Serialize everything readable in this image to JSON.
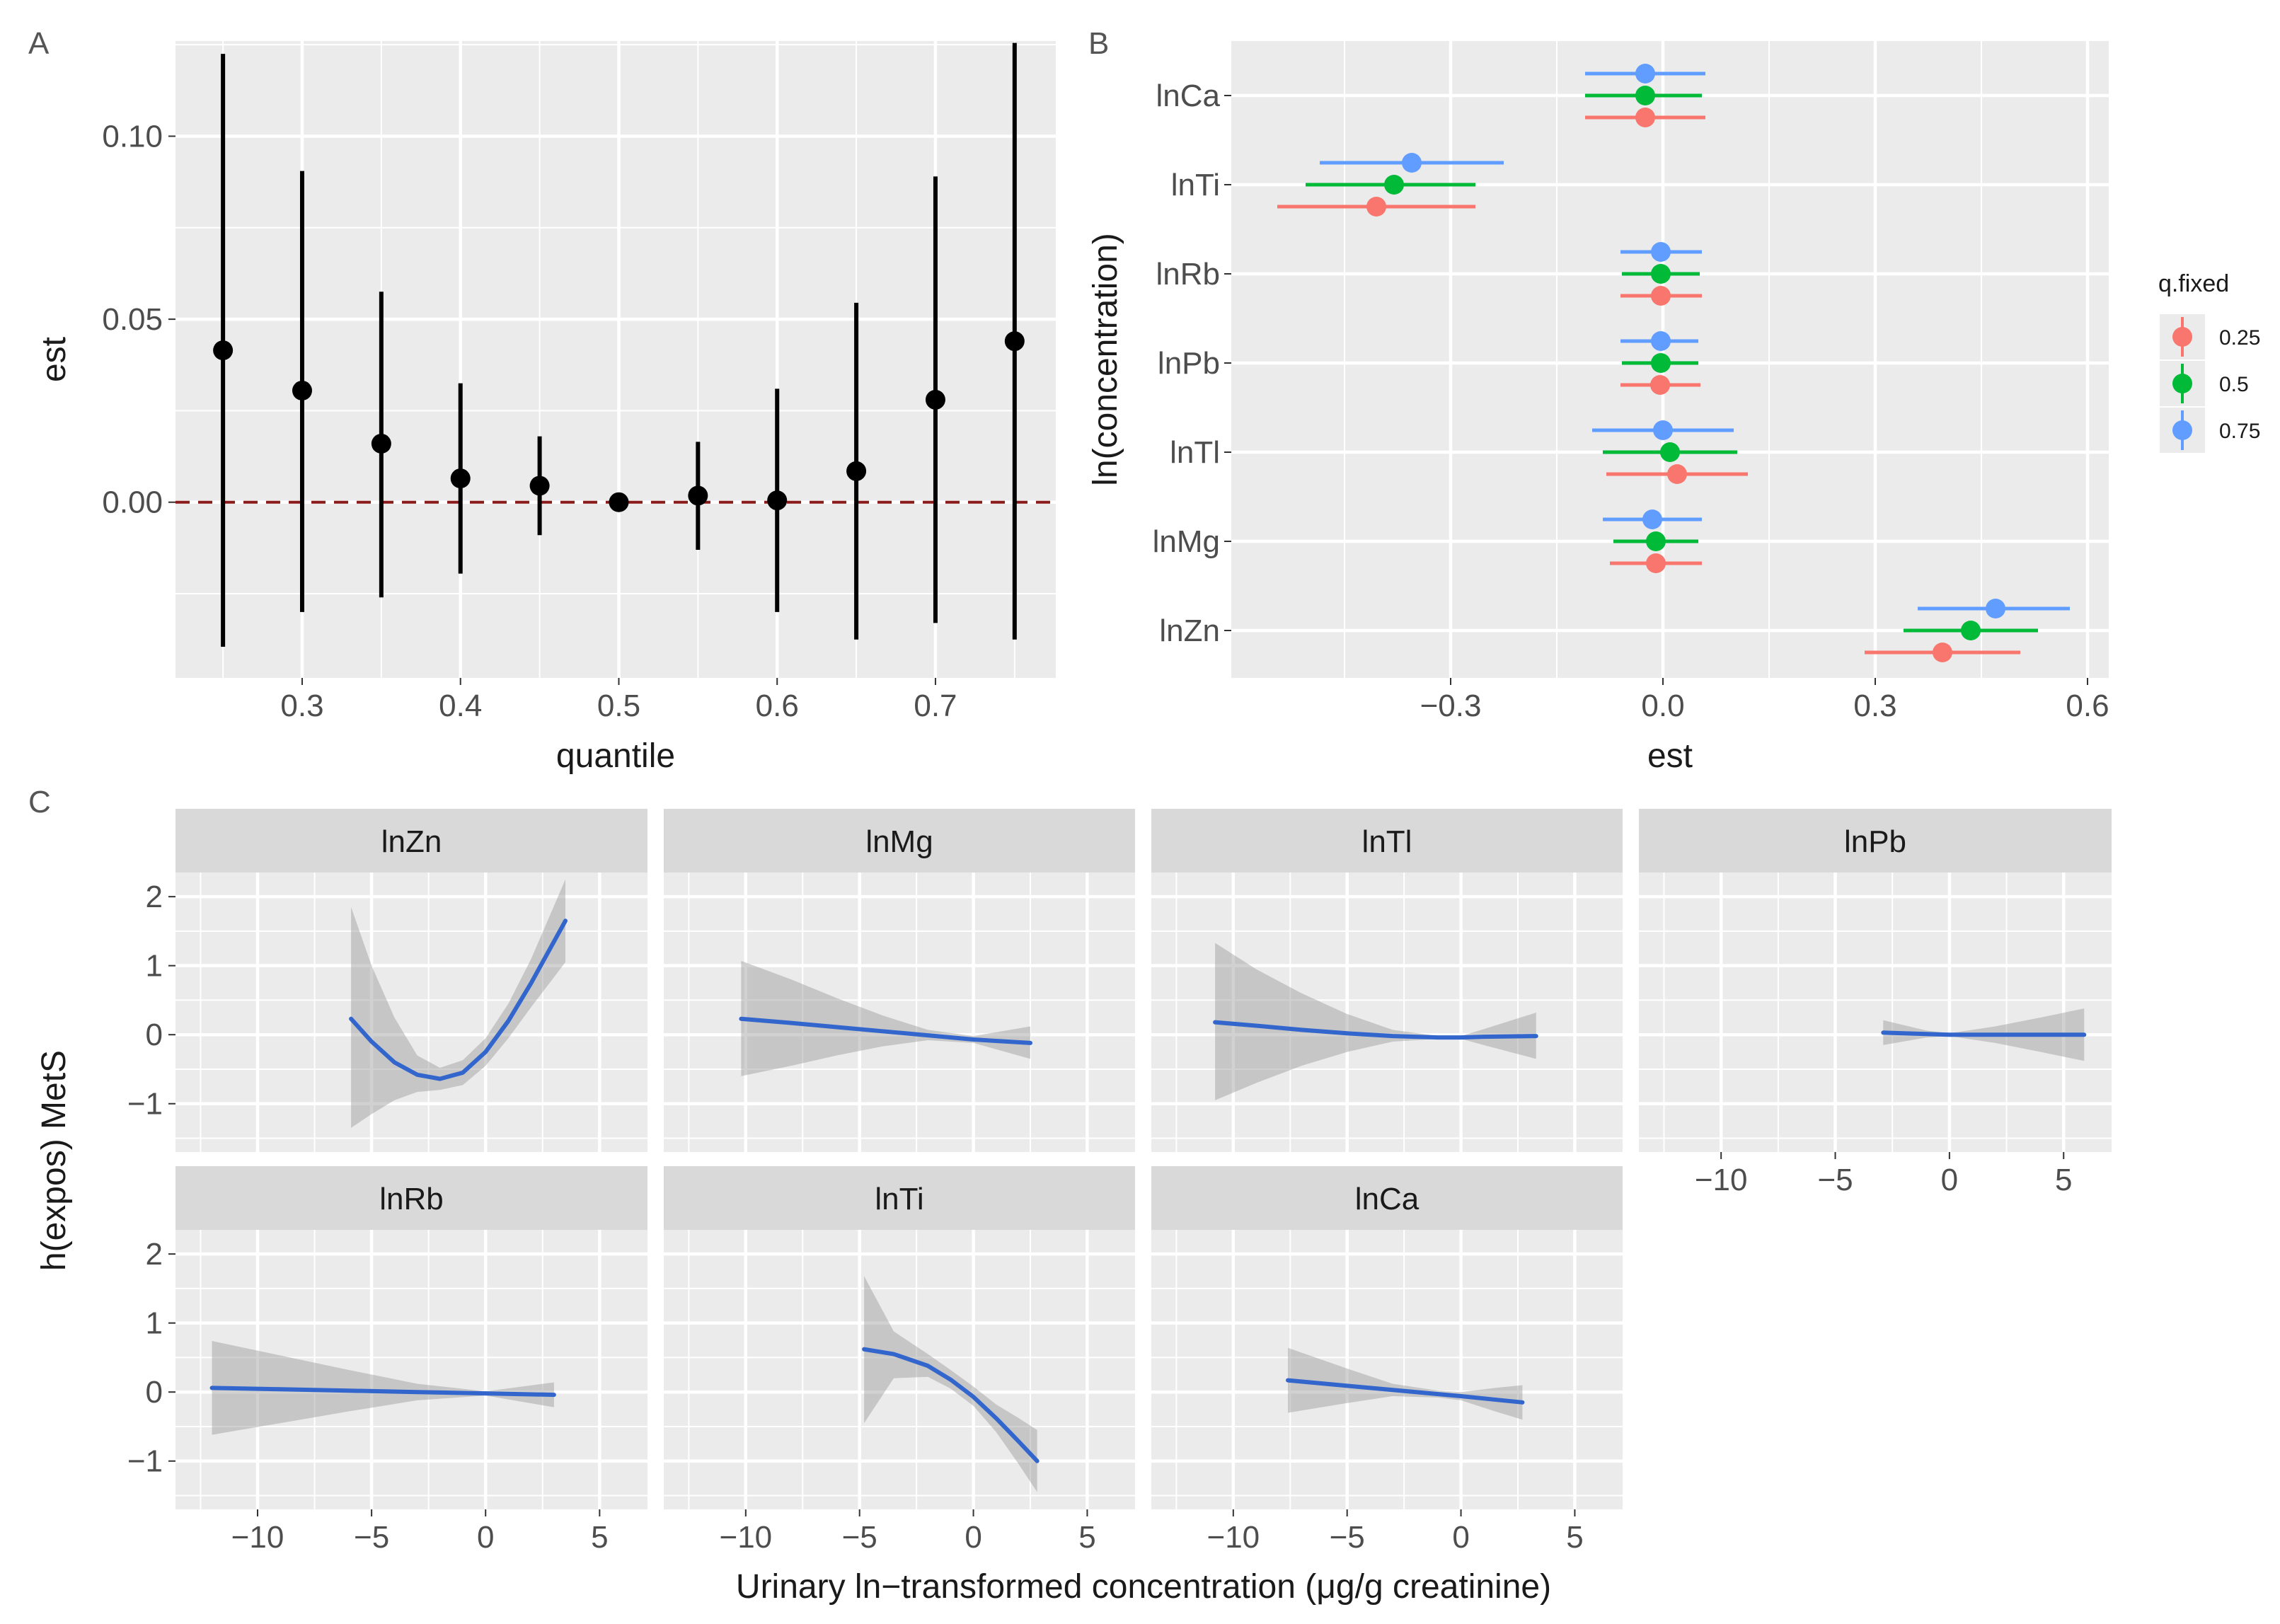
{
  "panels": {
    "a": "A",
    "b": "B",
    "c": "C"
  },
  "colors": {
    "panel_bg": "#ebebeb",
    "grid_major": "#ffffff",
    "point": "#000000",
    "ref_line": "#8b1a1a",
    "q025": "#f8766d",
    "q05": "#00ba38",
    "q075": "#619cff",
    "curve": "#3366cc",
    "ribbon": "#999999",
    "strip_bg": "#d9d9d9"
  },
  "chart_data": [
    {
      "type": "scatter",
      "panel": "A",
      "xlabel": "quantile",
      "ylabel": "est",
      "xlim": [
        0.22,
        0.776
      ],
      "ylim": [
        -0.048,
        0.126
      ],
      "xticks": [
        {
          "v": 0.3,
          "label": "0.3"
        },
        {
          "v": 0.4,
          "label": "0.4"
        },
        {
          "v": 0.5,
          "label": "0.5"
        },
        {
          "v": 0.6,
          "label": "0.6"
        },
        {
          "v": 0.7,
          "label": "0.7"
        }
      ],
      "yticks": [
        {
          "v": 0.0,
          "label": "0.00"
        },
        {
          "v": 0.05,
          "label": "0.05"
        },
        {
          "v": 0.1,
          "label": "0.10"
        }
      ],
      "reference_line": 0,
      "points": [
        {
          "x": 0.25,
          "est": 0.0415,
          "lo": -0.0395,
          "hi": 0.1225
        },
        {
          "x": 0.3,
          "est": 0.0305,
          "lo": -0.03,
          "hi": 0.0905
        },
        {
          "x": 0.35,
          "est": 0.016,
          "lo": -0.026,
          "hi": 0.0575
        },
        {
          "x": 0.4,
          "est": 0.0065,
          "lo": -0.0195,
          "hi": 0.0325
        },
        {
          "x": 0.45,
          "est": 0.0045,
          "lo": -0.009,
          "hi": 0.018
        },
        {
          "x": 0.5,
          "est": 0.0,
          "lo": 0.0,
          "hi": 0.0
        },
        {
          "x": 0.55,
          "est": 0.0018,
          "lo": -0.013,
          "hi": 0.0165
        },
        {
          "x": 0.6,
          "est": 0.0005,
          "lo": -0.03,
          "hi": 0.031
        },
        {
          "x": 0.65,
          "est": 0.0085,
          "lo": -0.0375,
          "hi": 0.0545
        },
        {
          "x": 0.7,
          "est": 0.028,
          "lo": -0.033,
          "hi": 0.089
        },
        {
          "x": 0.75,
          "est": 0.044,
          "lo": -0.0375,
          "hi": 0.1255
        }
      ]
    },
    {
      "type": "scatter",
      "panel": "B",
      "xlabel": "est",
      "ylabel": "ln(concentration)",
      "xlim": [
        -0.61,
        0.63
      ],
      "xticks": [
        {
          "v": -0.3,
          "label": "−0.3"
        },
        {
          "v": 0.0,
          "label": "0.0"
        },
        {
          "v": 0.3,
          "label": "0.3"
        },
        {
          "v": 0.6,
          "label": "0.6"
        }
      ],
      "categories": [
        "lnCa",
        "lnTi",
        "lnRb",
        "lnPb",
        "lnTl",
        "lnMg",
        "lnZn"
      ],
      "legend": {
        "title": "q.fixed",
        "position": "right"
      },
      "series": [
        {
          "name": "0.25",
          "color_key": "q025",
          "values": [
            {
              "est": -0.025,
              "lo": -0.11,
              "hi": 0.06
            },
            {
              "est": -0.405,
              "lo": -0.545,
              "hi": -0.265
            },
            {
              "est": -0.003,
              "lo": -0.06,
              "hi": 0.055
            },
            {
              "est": -0.004,
              "lo": -0.06,
              "hi": 0.053
            },
            {
              "est": 0.02,
              "lo": -0.08,
              "hi": 0.12
            },
            {
              "est": -0.01,
              "lo": -0.075,
              "hi": 0.055
            },
            {
              "est": 0.395,
              "lo": 0.285,
              "hi": 0.505
            }
          ]
        },
        {
          "name": "0.5",
          "color_key": "q05",
          "values": [
            {
              "est": -0.025,
              "lo": -0.11,
              "hi": 0.055
            },
            {
              "est": -0.38,
              "lo": -0.505,
              "hi": -0.265
            },
            {
              "est": -0.003,
              "lo": -0.058,
              "hi": 0.052
            },
            {
              "est": -0.003,
              "lo": -0.058,
              "hi": 0.05
            },
            {
              "est": 0.01,
              "lo": -0.085,
              "hi": 0.105
            },
            {
              "est": -0.01,
              "lo": -0.07,
              "hi": 0.05
            },
            {
              "est": 0.435,
              "lo": 0.34,
              "hi": 0.53
            }
          ]
        },
        {
          "name": "0.75",
          "color_key": "q075",
          "values": [
            {
              "est": -0.025,
              "lo": -0.11,
              "hi": 0.06
            },
            {
              "est": -0.355,
              "lo": -0.485,
              "hi": -0.225
            },
            {
              "est": -0.003,
              "lo": -0.06,
              "hi": 0.055
            },
            {
              "est": -0.003,
              "lo": -0.06,
              "hi": 0.05
            },
            {
              "est": 0.0,
              "lo": -0.1,
              "hi": 0.1
            },
            {
              "est": -0.015,
              "lo": -0.085,
              "hi": 0.055
            },
            {
              "est": 0.47,
              "lo": 0.36,
              "hi": 0.575
            }
          ]
        }
      ]
    },
    {
      "type": "line",
      "panel": "C",
      "xlabel": "Urinary ln−transformed concentration (μg/g creatinine)",
      "ylabel": "h(expos) MetS",
      "xlim": [
        -13.6,
        7.1
      ],
      "ylim": [
        -1.7,
        2.35
      ],
      "xticks": [
        {
          "v": -10,
          "label": "−10"
        },
        {
          "v": -5,
          "label": "−5"
        },
        {
          "v": 0,
          "label": "0"
        },
        {
          "v": 5,
          "label": "5"
        }
      ],
      "yticks": [
        {
          "v": -1,
          "label": "−1"
        },
        {
          "v": 0,
          "label": "0"
        },
        {
          "v": 1,
          "label": "1"
        },
        {
          "v": 2,
          "label": "2"
        }
      ],
      "facets": [
        {
          "title": "lnZn",
          "x": [
            -5.9,
            -5,
            -4,
            -3,
            -2,
            -1,
            0,
            1,
            2,
            3.5
          ],
          "y": [
            0.23,
            -0.1,
            -0.4,
            -0.58,
            -0.64,
            -0.55,
            -0.25,
            0.2,
            0.75,
            1.65
          ],
          "lo": [
            -1.35,
            -1.15,
            -0.95,
            -0.83,
            -0.8,
            -0.73,
            -0.45,
            -0.05,
            0.4,
            1.05
          ],
          "hi": [
            1.85,
            1.0,
            0.25,
            -0.3,
            -0.48,
            -0.37,
            -0.05,
            0.45,
            1.1,
            2.25
          ]
        },
        {
          "title": "lnMg",
          "x": [
            -10.2,
            -8,
            -6,
            -4,
            -2,
            0,
            2.5
          ],
          "y": [
            0.23,
            0.17,
            0.11,
            0.05,
            -0.01,
            -0.07,
            -0.12
          ],
          "lo": [
            -0.6,
            -0.45,
            -0.3,
            -0.17,
            -0.08,
            -0.12,
            -0.35
          ],
          "hi": [
            1.07,
            0.8,
            0.53,
            0.28,
            0.07,
            -0.02,
            0.12
          ]
        },
        {
          "title": "lnTl",
          "x": [
            -10.8,
            -9,
            -7,
            -5,
            -3,
            -1,
            0,
            1,
            3.3
          ],
          "y": [
            0.18,
            0.13,
            0.07,
            0.02,
            -0.02,
            -0.04,
            -0.04,
            -0.03,
            -0.02
          ],
          "lo": [
            -0.95,
            -0.7,
            -0.45,
            -0.25,
            -0.1,
            -0.06,
            -0.06,
            -0.15,
            -0.35
          ],
          "hi": [
            1.33,
            0.95,
            0.6,
            0.3,
            0.07,
            -0.02,
            -0.02,
            0.08,
            0.32
          ]
        },
        {
          "title": "lnPb",
          "x": [
            -2.9,
            -1,
            0,
            2,
            4,
            5.9
          ],
          "y": [
            0.03,
            0.01,
            0.0,
            0.0,
            0.0,
            0.0
          ],
          "lo": [
            -0.15,
            -0.04,
            -0.02,
            -0.12,
            -0.25,
            -0.38
          ],
          "hi": [
            0.21,
            0.06,
            0.02,
            0.12,
            0.25,
            0.38
          ]
        },
        {
          "title": "lnRb",
          "x": [
            -12,
            -9,
            -6,
            -3,
            0,
            3
          ],
          "y": [
            0.06,
            0.04,
            0.02,
            0.0,
            -0.02,
            -0.04
          ],
          "lo": [
            -0.62,
            -0.45,
            -0.28,
            -0.12,
            -0.05,
            -0.22
          ],
          "hi": [
            0.74,
            0.53,
            0.32,
            0.12,
            0.01,
            0.14
          ]
        },
        {
          "title": "lnTi",
          "x": [
            -4.8,
            -3.5,
            -2,
            -1,
            0,
            1,
            2,
            2.8
          ],
          "y": [
            0.62,
            0.55,
            0.38,
            0.18,
            -0.07,
            -0.38,
            -0.72,
            -1.0
          ],
          "lo": [
            -0.45,
            0.2,
            0.22,
            0.05,
            -0.2,
            -0.58,
            -1.05,
            -1.45
          ],
          "hi": [
            1.68,
            0.88,
            0.55,
            0.32,
            0.08,
            -0.18,
            -0.38,
            -0.55
          ]
        },
        {
          "title": "lnCa",
          "x": [
            -7.6,
            -5,
            -3,
            -1,
            0,
            1.5,
            2.7
          ],
          "y": [
            0.17,
            0.09,
            0.03,
            -0.03,
            -0.06,
            -0.11,
            -0.15
          ],
          "lo": [
            -0.3,
            -0.16,
            -0.06,
            -0.08,
            -0.12,
            -0.28,
            -0.4
          ],
          "hi": [
            0.64,
            0.34,
            0.12,
            0.02,
            0.0,
            0.06,
            0.1
          ]
        }
      ]
    }
  ]
}
